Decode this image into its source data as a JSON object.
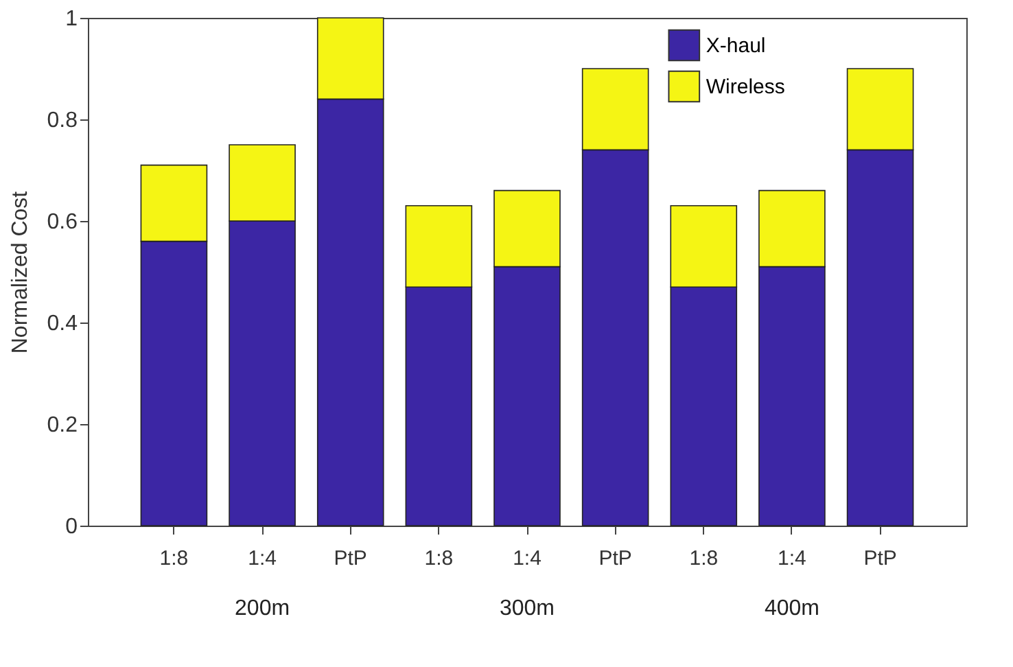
{
  "chart_data": {
    "type": "bar",
    "stacked": true,
    "ylabel": "Normalized Cost",
    "categories": [
      "1:8",
      "1:4",
      "PtP",
      "1:8",
      "1:4",
      "PtP",
      "1:8",
      "1:4",
      "PtP"
    ],
    "series": [
      {
        "name": "X-haul",
        "color": "#3c26a4",
        "values": [
          0.56,
          0.6,
          0.84,
          0.47,
          0.51,
          0.74,
          0.47,
          0.51,
          0.74
        ]
      },
      {
        "name": "Wireless",
        "color": "#f5f514",
        "values": [
          0.15,
          0.15,
          0.16,
          0.16,
          0.15,
          0.16,
          0.16,
          0.15,
          0.16
        ]
      }
    ],
    "ylim": [
      0,
      1
    ],
    "yticks": [
      0,
      0.2,
      0.4,
      0.6,
      0.8,
      1
    ],
    "annotations": [
      "200m",
      "300m",
      "400m"
    ],
    "legend": "top right",
    "grid": false
  }
}
